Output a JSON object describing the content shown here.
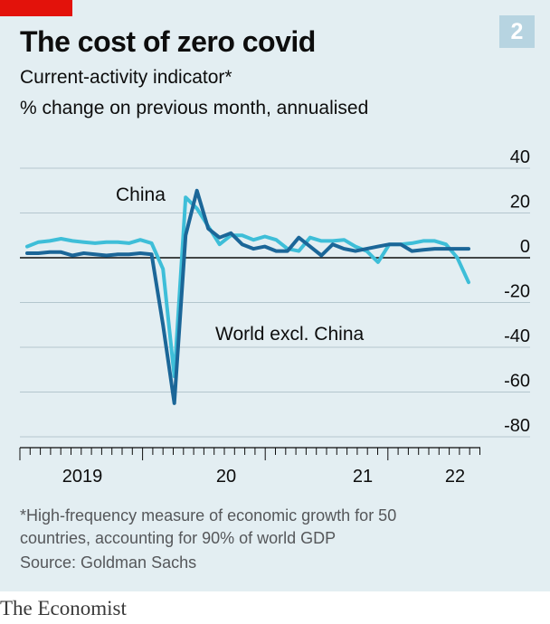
{
  "header": {
    "title": "The cost of zero covid",
    "subtitle": "Current-activity indicator*",
    "unit": "% change on previous month, annualised",
    "chart_number": "2"
  },
  "footer": {
    "footnote_line1": "*High-frequency measure of economic growth for 50",
    "footnote_line2": "countries, accounting for 90% of world GDP",
    "source": "Source: Goldman Sachs",
    "brand": "The Economist"
  },
  "colors": {
    "china": "#3ebed8",
    "world": "#1b6698",
    "brand_red": "#e3120b",
    "panel": "#e3eef2"
  },
  "chart_data": {
    "type": "line",
    "title": "The cost of zero covid",
    "subtitle": "Current-activity indicator*",
    "ylabel": "% change on previous month, annualised",
    "ylim": [
      -80,
      40
    ],
    "yticks": [
      40,
      20,
      0,
      -20,
      -40,
      -60,
      -80
    ],
    "xlim": [
      "2019-01",
      "2022-04"
    ],
    "xtick_labels": [
      "2019",
      "20",
      "21",
      "22"
    ],
    "grid": true,
    "legend": "direct labels",
    "series": [
      {
        "name": "China",
        "x": [
          "2019-01",
          "2019-02",
          "2019-03",
          "2019-04",
          "2019-05",
          "2019-06",
          "2019-07",
          "2019-08",
          "2019-09",
          "2019-10",
          "2019-11",
          "2019-12",
          "2020-01",
          "2020-02",
          "2020-03",
          "2020-04",
          "2020-05",
          "2020-06",
          "2020-07",
          "2020-08",
          "2020-09",
          "2020-10",
          "2020-11",
          "2020-12",
          "2021-01",
          "2021-02",
          "2021-03",
          "2021-04",
          "2021-05",
          "2021-06",
          "2021-07",
          "2021-08",
          "2021-09",
          "2021-10",
          "2021-11",
          "2021-12",
          "2022-01",
          "2022-02",
          "2022-03",
          "2022-04"
        ],
        "values": [
          5,
          7,
          7.5,
          8.5,
          7.5,
          7,
          6.5,
          7,
          7,
          6.5,
          8,
          6.5,
          -5,
          -53,
          27,
          22,
          14,
          6,
          10,
          10,
          8,
          9.5,
          8,
          4,
          3,
          9,
          7.5,
          7.5,
          8,
          5,
          3,
          -2,
          6,
          6,
          6.5,
          7.5,
          7.5,
          6,
          0,
          -11
        ]
      },
      {
        "name": "World excl. China",
        "x": [
          "2019-01",
          "2019-02",
          "2019-03",
          "2019-04",
          "2019-05",
          "2019-06",
          "2019-07",
          "2019-08",
          "2019-09",
          "2019-10",
          "2019-11",
          "2019-12",
          "2020-01",
          "2020-02",
          "2020-03",
          "2020-04",
          "2020-05",
          "2020-06",
          "2020-07",
          "2020-08",
          "2020-09",
          "2020-10",
          "2020-11",
          "2020-12",
          "2021-01",
          "2021-02",
          "2021-03",
          "2021-04",
          "2021-05",
          "2021-06",
          "2021-07",
          "2021-08",
          "2021-09",
          "2021-10",
          "2021-11",
          "2021-12",
          "2022-01",
          "2022-02",
          "2022-03",
          "2022-04"
        ],
        "values": [
          2,
          2,
          2.5,
          2.5,
          1,
          2,
          1.5,
          1,
          1.5,
          1.5,
          2,
          1.5,
          -30,
          -65,
          10,
          30,
          13,
          9,
          11,
          6,
          4,
          5,
          3,
          3,
          9,
          5,
          1,
          6,
          4,
          3,
          4,
          5,
          6,
          6,
          3,
          3.5,
          4,
          4,
          4,
          4
        ]
      }
    ],
    "annotations": [
      {
        "text": "China",
        "series": "China"
      },
      {
        "text": "World excl. China",
        "series": "World excl. China"
      }
    ]
  }
}
